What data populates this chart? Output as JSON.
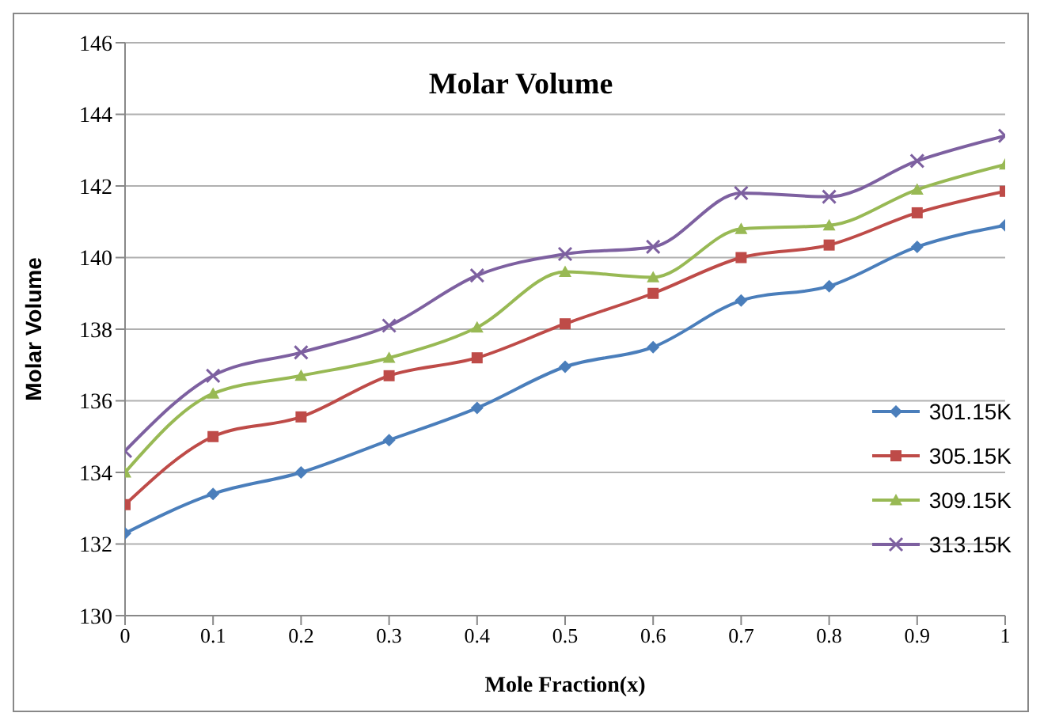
{
  "chart_data": {
    "type": "line",
    "title": "Molar Volume",
    "xlabel": "Mole Fraction(x)",
    "ylabel": "Molar Volume",
    "x": [
      0,
      0.1,
      0.2,
      0.3,
      0.4,
      0.5,
      0.6,
      0.7,
      0.8,
      0.9,
      1
    ],
    "xlim": [
      0,
      1
    ],
    "xticks": [
      0,
      0.1,
      0.2,
      0.3,
      0.4,
      0.5,
      0.6,
      0.7,
      0.8,
      0.9,
      1
    ],
    "ylim": [
      130,
      146
    ],
    "yticks": [
      130,
      132,
      134,
      136,
      138,
      140,
      142,
      144,
      146
    ],
    "grid": "y",
    "legend": "bottom right",
    "line_style": "solid",
    "series": [
      {
        "name": "301.15K",
        "color": "#4a7ebb",
        "marker": "diamond",
        "values": [
          132.3,
          133.4,
          134.0,
          134.9,
          135.8,
          136.95,
          137.5,
          138.8,
          139.2,
          140.3,
          140.9
        ]
      },
      {
        "name": "305.15K",
        "color": "#be4b48",
        "marker": "square",
        "values": [
          133.1,
          135.0,
          135.55,
          136.7,
          137.2,
          138.15,
          139.0,
          140.0,
          140.35,
          141.25,
          141.85
        ]
      },
      {
        "name": "309.15K",
        "color": "#98b954",
        "marker": "triangle",
        "values": [
          134.0,
          136.2,
          136.7,
          137.2,
          138.05,
          139.6,
          139.45,
          140.8,
          140.9,
          141.9,
          142.6
        ]
      },
      {
        "name": "313.15K",
        "color": "#7d60a0",
        "marker": "cross",
        "values": [
          134.6,
          136.7,
          137.35,
          138.1,
          139.5,
          140.1,
          140.3,
          141.8,
          141.7,
          142.7,
          143.4
        ]
      }
    ]
  }
}
